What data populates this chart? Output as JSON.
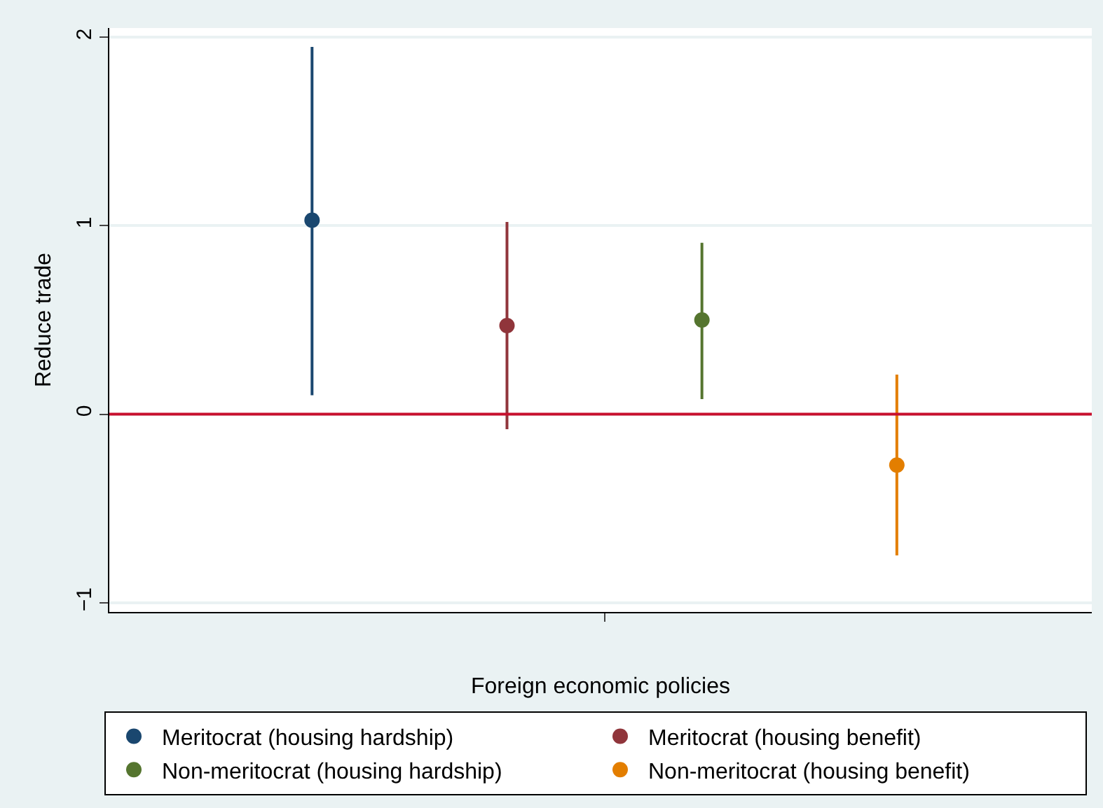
{
  "chart_data": {
    "type": "scatter",
    "xlabel": "Foreign economic policies",
    "ylabel": "Reduce trade",
    "categories": [
      null,
      null,
      null,
      null
    ],
    "series": [
      {
        "name": "Meritocrat (housing hardship)",
        "color": "#1a476f",
        "values": [
          1.03,
          null,
          null,
          null
        ],
        "errors": [
          [
            0.1,
            1.95
          ],
          null,
          null,
          null
        ]
      },
      {
        "name": "Meritocrat (housing benefit)",
        "color": "#90353b",
        "values": [
          null,
          0.47,
          null,
          null
        ],
        "errors": [
          null,
          [
            -0.08,
            1.02
          ],
          null,
          null
        ]
      },
      {
        "name": "Non-meritocrat (housing hardship)",
        "color": "#55752f",
        "values": [
          null,
          null,
          0.5,
          null
        ],
        "errors": [
          null,
          null,
          [
            0.08,
            0.91
          ],
          null
        ]
      },
      {
        "name": "Non-meritocrat (housing benefit)",
        "color": "#e37e00",
        "values": [
          null,
          null,
          null,
          -0.27
        ],
        "errors": [
          null,
          null,
          null,
          [
            -0.75,
            0.21
          ]
        ]
      }
    ],
    "ylim": [
      -1.05,
      2.05
    ],
    "yticks": [
      -1,
      0,
      1,
      2
    ],
    "ref_lines": [
      {
        "axis": "y",
        "value": 0,
        "color": "#c8102e"
      }
    ],
    "grid": "y",
    "legend": "bottom",
    "marker": "circle"
  }
}
